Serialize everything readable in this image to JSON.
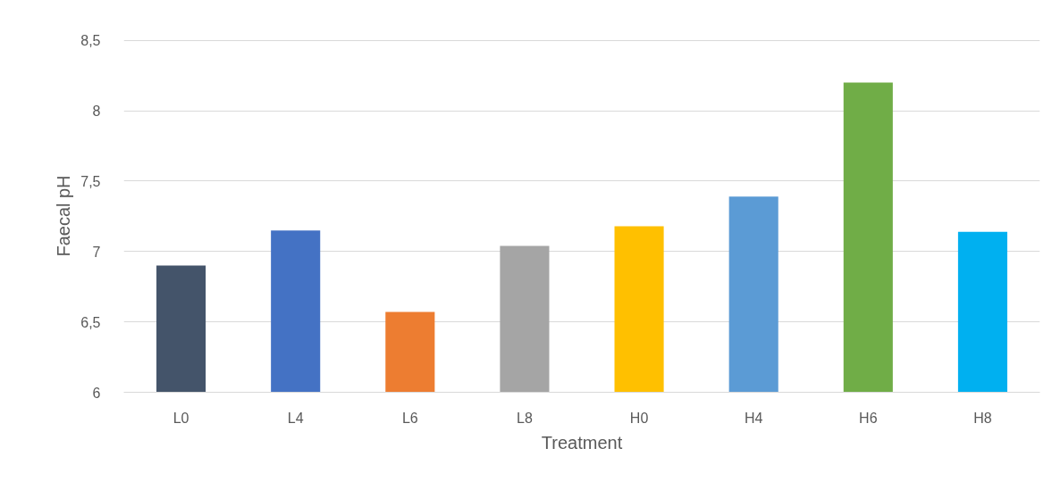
{
  "chart_data": {
    "type": "bar",
    "xlabel": "Treatment",
    "ylabel": "Faecal pH",
    "categories": [
      "L0",
      "L4",
      "L6",
      "L8",
      "H0",
      "H4",
      "H6",
      "H8"
    ],
    "values": [
      6.9,
      7.15,
      6.57,
      7.04,
      7.18,
      7.39,
      8.2,
      7.14
    ],
    "colors": [
      "#44546a",
      "#4472c4",
      "#ed7d31",
      "#a5a5a5",
      "#ffc000",
      "#5b9bd5",
      "#70ad47",
      "#00b0f0"
    ],
    "ylim": [
      6,
      8.5
    ],
    "yticks": [
      6,
      {
        "value": 6.5,
        "label": "6,5"
      },
      7,
      {
        "value": 7.5,
        "label": "7,5"
      },
      8,
      {
        "value": 8.5,
        "label": "8,5"
      }
    ],
    "grid": "y"
  }
}
